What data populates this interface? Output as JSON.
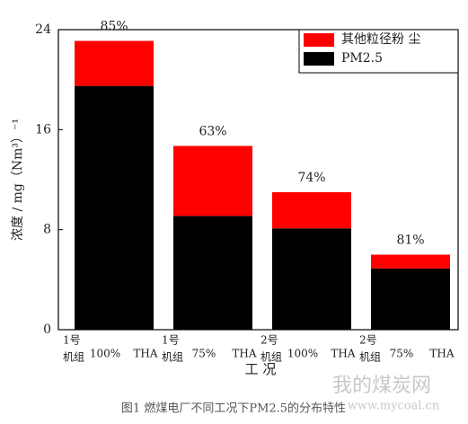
{
  "chart_data": {
    "type": "stacked_bar",
    "categories": [
      [
        "1号",
        "机组",
        "100%",
        "THA"
      ],
      [
        "1号",
        "机组",
        "75%",
        "THA"
      ],
      [
        "2号",
        "机组",
        "100%",
        "THA"
      ],
      [
        "2号",
        "机组",
        "75%",
        "THA"
      ]
    ],
    "series": [
      {
        "name": "PM2.5",
        "color": "#000000",
        "values": [
          19.5,
          9.1,
          8.1,
          4.9
        ]
      },
      {
        "name": "其他粒径粉 尘",
        "color": "#ff0000",
        "values": [
          3.6,
          5.6,
          2.9,
          1.1
        ]
      }
    ],
    "annotations": [
      "85%",
      "63%",
      "74%",
      "81%"
    ],
    "ylim": [
      0,
      24
    ],
    "yticks": [
      0,
      8,
      16,
      24
    ],
    "x_label": "工 况",
    "y_label": "浓度 / mg（Nm³）⁻¹",
    "legend": "upper right"
  },
  "caption": "图1 燃煤电厂不同工况下PM2.5的分布特性",
  "watermark": [
    "我的煤炭网",
    "www.mycoal.cn"
  ]
}
